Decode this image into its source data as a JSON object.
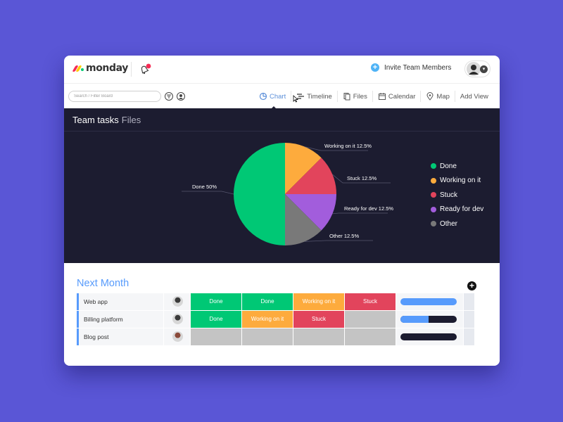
{
  "app": {
    "logo_text": "monday",
    "invite_label": "Invite Team Members"
  },
  "toolbar": {
    "search_placeholder": "Search / Filter Board",
    "views": [
      {
        "label": "Chart",
        "icon": "chart-icon",
        "active": true
      },
      {
        "label": "Timeline",
        "icon": "timeline-icon",
        "active": false
      },
      {
        "label": "Files",
        "icon": "files-icon",
        "active": false
      },
      {
        "label": "Calendar",
        "icon": "calendar-icon",
        "active": false
      },
      {
        "label": "Map",
        "icon": "map-pin-icon",
        "active": false
      },
      {
        "label": "Add View",
        "icon": "",
        "active": false
      }
    ]
  },
  "panel": {
    "title": "Team tasks",
    "subtitle": "Files"
  },
  "chart_data": {
    "type": "pie",
    "slices": [
      {
        "name": "Done",
        "value": 50,
        "label": "Done 50%",
        "color": "#00c875"
      },
      {
        "name": "Working on it",
        "value": 12.5,
        "label": "Working on it 12.5%",
        "color": "#fdab3d"
      },
      {
        "name": "Stuck",
        "value": 12.5,
        "label": "Stuck 12.5%",
        "color": "#e2445c"
      },
      {
        "name": "Ready for dev",
        "value": 12.5,
        "label": "Ready for dev 12.5%",
        "color": "#a25ddc"
      },
      {
        "name": "Other",
        "value": 12.5,
        "label": "Other 12.5%",
        "color": "#797979"
      }
    ],
    "legend": [
      "Done",
      "Working on it",
      "Stuck",
      "Ready for dev",
      "Other"
    ],
    "legend_position": "right"
  },
  "group": {
    "title": "Next Month",
    "rows": [
      {
        "name": "Web app",
        "statuses": [
          "Done",
          "Done",
          "Working on it",
          "Stuck"
        ],
        "progress": 1.0
      },
      {
        "name": "Billing platform",
        "statuses": [
          "Done",
          "Working on it",
          "Stuck",
          ""
        ],
        "progress": 0.5
      },
      {
        "name": "Blog post",
        "statuses": [
          "",
          "",
          "",
          ""
        ],
        "progress": 0
      }
    ]
  },
  "colors": {
    "background": "#5a56d6",
    "panel": "#1c1c30",
    "accent": "#579bfc",
    "Done": "#00c875",
    "Working on it": "#fdab3d",
    "Stuck": "#e2445c",
    "empty": "#c4c4c4"
  }
}
